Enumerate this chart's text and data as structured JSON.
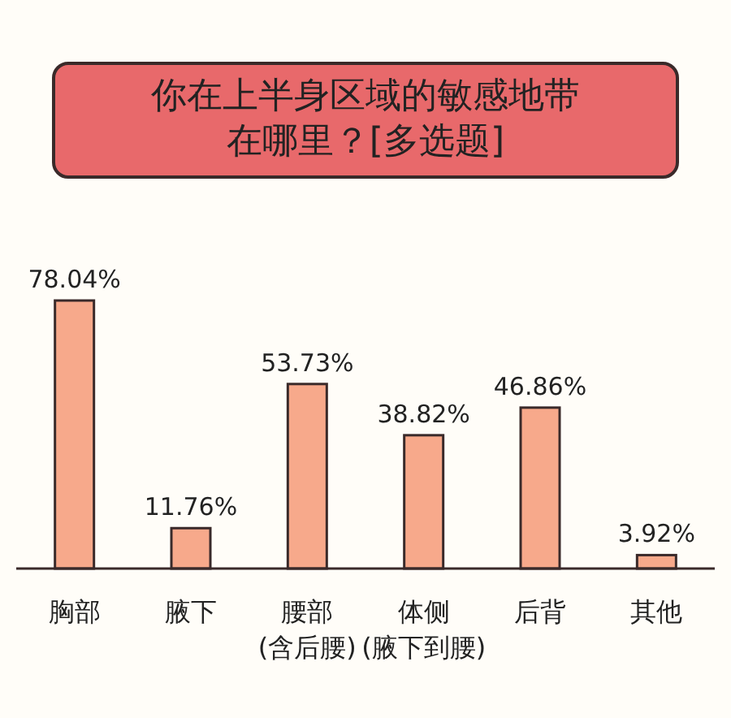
{
  "chart_data": {
    "type": "bar",
    "title": "你在上半身区域的敏感地带在哪里？[多选题]",
    "categories": [
      "胸部",
      "腋下",
      "腰部\n(含后腰)",
      "体侧\n(腋下到腰)",
      "后背",
      "其他"
    ],
    "values": [
      78.04,
      11.76,
      53.73,
      38.82,
      46.86,
      3.92
    ],
    "value_labels": [
      "78.04%",
      "11.76%",
      "53.73%",
      "38.82%",
      "46.86%",
      "3.92%"
    ],
    "color": "#f7a98b"
  }
}
